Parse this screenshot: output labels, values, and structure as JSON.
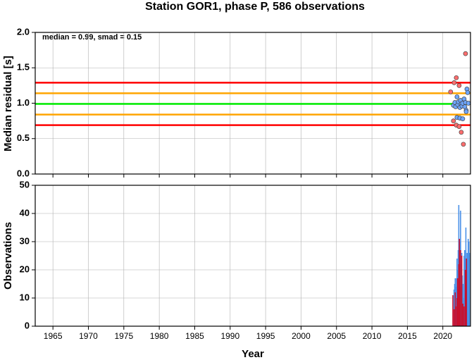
{
  "chart_data": [
    {
      "type": "scatter",
      "title": "Station GOR1, phase P, 586 observations",
      "ylabel": "Median residual [s]",
      "annotation": "median = 0.99, smad = 0.15",
      "xlim": [
        1962.5,
        2023.9
      ],
      "xticks": [
        1965,
        1970,
        1975,
        1980,
        1985,
        1990,
        1995,
        2000,
        2005,
        2010,
        2015,
        2020
      ],
      "x_tick_labels": false,
      "ylim": [
        0,
        2
      ],
      "yticks": [
        {
          "value": 0,
          "label": "0.0"
        },
        0.5,
        {
          "value": 1,
          "label": "1.0"
        },
        1.5,
        {
          "value": 2,
          "label": "2.0"
        }
      ],
      "grid": true,
      "hlines": [
        {
          "value": 1.29,
          "color": "#ff0000"
        },
        {
          "value": 1.14,
          "color": "#ffa500"
        },
        {
          "value": 0.99,
          "color": "#00ee00"
        },
        {
          "value": 0.84,
          "color": "#ffa500"
        },
        {
          "value": 0.69,
          "color": "#ff0000"
        }
      ],
      "series": [
        {
          "color": "#ff6e6e",
          "x": [
            2021.1,
            2021.6,
            2021.9,
            2022.3,
            2023.2,
            2021.5,
            2021.9,
            2022.3,
            2022.6,
            2022.9
          ],
          "values": [
            1.16,
            1.29,
            1.36,
            1.25,
            1.7,
            0.75,
            0.69,
            0.67,
            0.59,
            0.42
          ]
        },
        {
          "color": "#6ea6ff",
          "x": [
            2021.5,
            2021.7,
            2021.8,
            2022.0,
            2022.1,
            2022.2,
            2022.4,
            2022.5,
            2022.6,
            2022.7,
            2022.8,
            2023.0,
            2023.1,
            2023.2,
            2023.3,
            2023.4,
            2023.5,
            2023.6,
            2022.0,
            2022.4,
            2022.8,
            2023.3
          ],
          "values": [
            0.97,
            1.01,
            0.95,
            1.09,
            0.98,
            1.02,
            0.94,
            1.04,
            0.99,
            0.96,
            1.0,
            1.06,
            0.95,
            1.01,
            0.9,
            1.2,
            1.15,
            1.0,
            0.8,
            0.79,
            0.78,
            0.88
          ]
        }
      ]
    },
    {
      "type": "bar",
      "ylabel": "Observations",
      "xlabel": "Year",
      "xlim": [
        1962.5,
        2023.9
      ],
      "xticks": [
        1965,
        1970,
        1975,
        1980,
        1985,
        1990,
        1995,
        2000,
        2005,
        2010,
        2015,
        2020
      ],
      "ylim": [
        0,
        50
      ],
      "yticks": [
        0,
        10,
        20,
        30,
        40,
        50
      ],
      "grid": true,
      "series": [
        {
          "color": "#4a90e8",
          "x": [
            2021.58,
            2021.67,
            2021.75,
            2021.83,
            2021.92,
            2022.0,
            2022.08,
            2022.17,
            2022.25,
            2022.33,
            2022.42,
            2022.5,
            2022.58,
            2022.67,
            2022.75,
            2022.83,
            2022.92,
            2023.0,
            2023.08,
            2023.17,
            2023.25,
            2023.33,
            2023.42,
            2023.5,
            2023.58,
            2023.67,
            2023.75
          ],
          "values": [
            13,
            15,
            17,
            14,
            17,
            24,
            20,
            27,
            43,
            28,
            30,
            41,
            22,
            26,
            18,
            15,
            10,
            25,
            27,
            24,
            35,
            20,
            26,
            24,
            31,
            30,
            26
          ]
        },
        {
          "color": "#c8102e",
          "x": [
            2021.42,
            2021.58,
            2021.75,
            2021.92,
            2022.0,
            2022.08,
            2022.17,
            2022.25,
            2022.33,
            2022.42,
            2022.5,
            2022.67,
            2022.83,
            2023.0,
            2023.17,
            2023.33
          ],
          "values": [
            11,
            6,
            12,
            7,
            10,
            17,
            13,
            22,
            31,
            14,
            27,
            25,
            8,
            7,
            20,
            24
          ]
        }
      ]
    }
  ]
}
